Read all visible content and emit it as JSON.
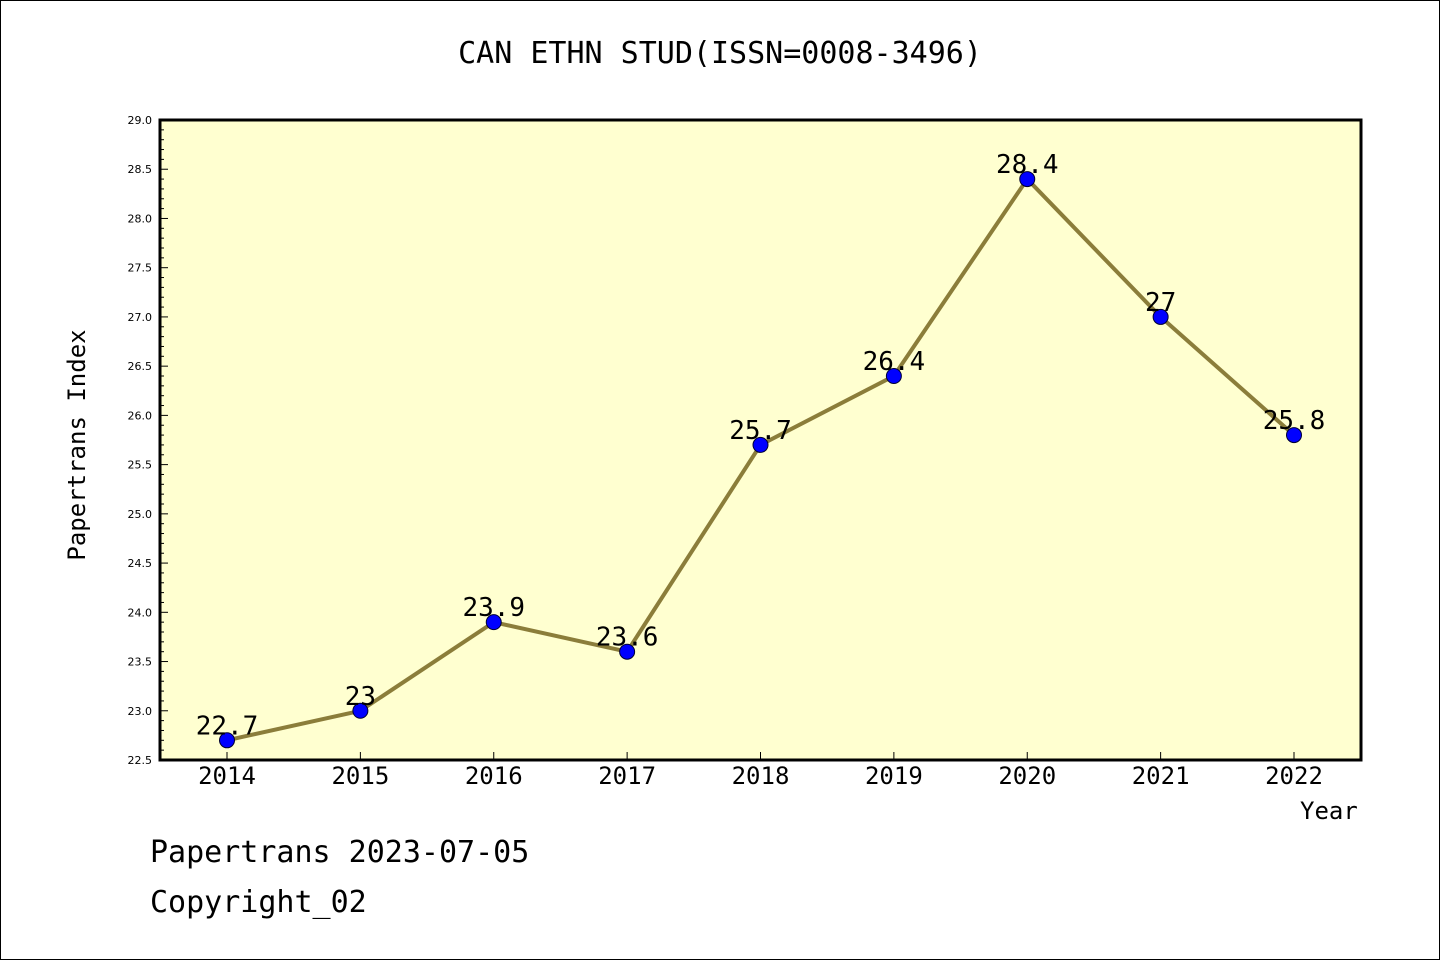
{
  "chart_data": {
    "type": "line",
    "title": "CAN ETHN STUD(ISSN=0008-3496)",
    "xlabel": "Year",
    "ylabel": "Papertrans Index",
    "x": [
      "2014",
      "2015",
      "2016",
      "2017",
      "2018",
      "2019",
      "2020",
      "2021",
      "2022"
    ],
    "series": [
      {
        "values": [
          22.7,
          23,
          23.9,
          23.6,
          25.7,
          26.4,
          28.4,
          27,
          25.8
        ],
        "labels": [
          "22.7",
          "23",
          "23.9",
          "23.6",
          "25.7",
          "26.4",
          "28.4",
          "27",
          "25.8"
        ],
        "line_color": "#8b7d3a",
        "marker_color": "#0000ff"
      }
    ],
    "ylim": [
      22.5,
      29.0
    ],
    "yticks": [
      "22.5",
      "23.0",
      "23.5",
      "24.0",
      "24.5",
      "25.0",
      "25.5",
      "26.0",
      "26.5",
      "27.0",
      "27.5",
      "28.0",
      "28.5",
      "29.0"
    ],
    "grid": false,
    "plot_background": "#ffffd0"
  },
  "footer": {
    "date_line": "Papertrans 2023-07-05",
    "copyright_line": "Copyright_02"
  }
}
